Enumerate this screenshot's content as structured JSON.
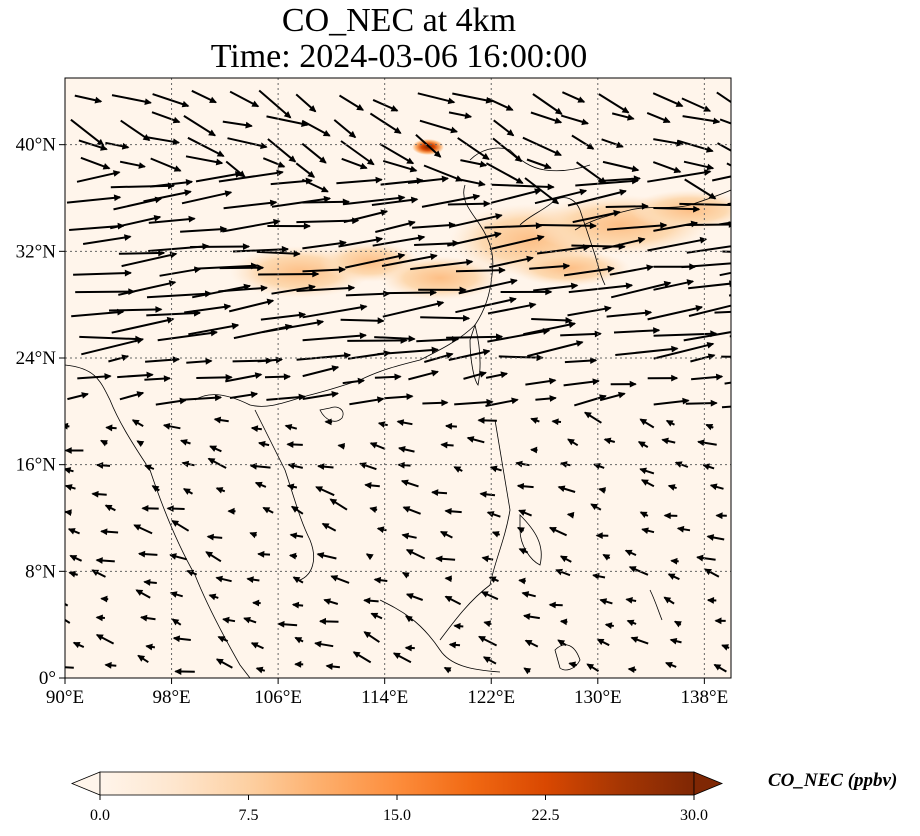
{
  "title": {
    "line1": "CO_NEC at 4km",
    "line2": "Time: 2024-03-06 16:00:00"
  },
  "map": {
    "lon_range": [
      90,
      140
    ],
    "lat_range": [
      0,
      45
    ],
    "lon_ticks": [
      {
        "value": 90,
        "label": "90°E"
      },
      {
        "value": 98,
        "label": "98°E"
      },
      {
        "value": 106,
        "label": "106°E"
      },
      {
        "value": 114,
        "label": "114°E"
      },
      {
        "value": 122,
        "label": "122°E"
      },
      {
        "value": 130,
        "label": "130°E"
      },
      {
        "value": 138,
        "label": "138°E"
      }
    ],
    "lat_ticks": [
      {
        "value": 0,
        "label": "0°"
      },
      {
        "value": 8,
        "label": "8°N"
      },
      {
        "value": 16,
        "label": "16°N"
      },
      {
        "value": 24,
        "label": "24°N"
      },
      {
        "value": 32,
        "label": "32°N"
      },
      {
        "value": 40,
        "label": "40°N"
      }
    ],
    "gridlines": true,
    "background_color": "#fff5eb",
    "coastline_color": "#000000",
    "vector_color": "#000000"
  },
  "colorbar": {
    "label": "CO_NEC (ppbv)",
    "min": 0,
    "max": 30,
    "extend": "both",
    "ticks": [
      "0.0",
      "7.5",
      "15.0",
      "22.5",
      "30.0"
    ],
    "colors": [
      "#fff5eb",
      "#fee6ce",
      "#fdd0a2",
      "#fdae6b",
      "#fd8d3c",
      "#f16913",
      "#d94801",
      "#a63603",
      "#7f2704"
    ]
  }
}
